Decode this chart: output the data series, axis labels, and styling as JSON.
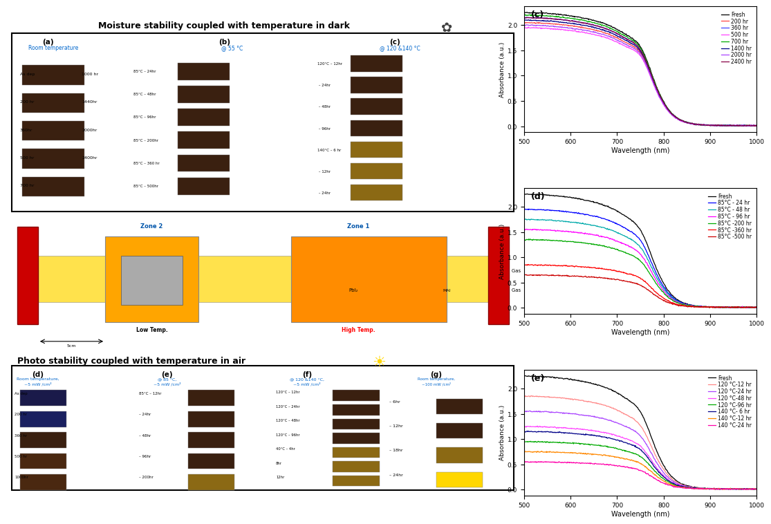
{
  "title_dark": "Moisture stability coupled with temperature in dark",
  "title_light": "Photo stability coupled with temperature in air",
  "panel_c": {
    "label": "(c)",
    "xlabel": "Wavelength (nm)",
    "ylabel": "Absorbance (a.u.)",
    "xmin": 500,
    "xmax": 1000,
    "legend": [
      "Fresh",
      "200 hr",
      "360 hr",
      "500 hr",
      "700 hr",
      "1400 hr",
      "2000 hr",
      "2400 hr"
    ],
    "colors": [
      "#000000",
      "#ff4444",
      "#4444ff",
      "#ff44ff",
      "#00aa00",
      "#000088",
      "#aa44ff",
      "#880044"
    ]
  },
  "panel_d": {
    "label": "(d)",
    "xlabel": "Wavelength (nm)",
    "ylabel": "Absorbance (a.u.)",
    "xmin": 500,
    "xmax": 1000,
    "legend": [
      "Fresh",
      "85°C - 24 hr",
      "85°C - 48 hr",
      "85°C - 96 hr",
      "85°C -200 hr",
      "85°C -360 hr",
      "85°C -500 hr"
    ],
    "colors": [
      "#000000",
      "#0000ff",
      "#00aaaa",
      "#ff00ff",
      "#00aa00",
      "#ff0000",
      "#cc0000"
    ]
  },
  "panel_e": {
    "label": "(e)",
    "xlabel": "Wavelength (nm)",
    "ylabel": "Absorbance (a.u.)",
    "xmin": 500,
    "xmax": 1000,
    "legend": [
      "Fresh",
      "120 °C-12 hr",
      "120 °C-24 hr",
      "120 °C-48 hr",
      "120 °C-96 hr",
      "140 °C- 6 hr",
      "140 °C-12 hr",
      "140 °C-24 hr"
    ],
    "colors": [
      "#000000",
      "#ff8888",
      "#aa44ff",
      "#ff44ff",
      "#00aa00",
      "#000088",
      "#ff8800",
      "#ff00aa"
    ]
  }
}
